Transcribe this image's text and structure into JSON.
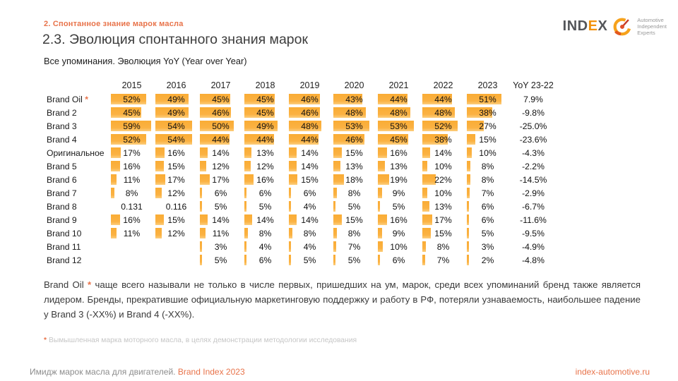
{
  "colors": {
    "accent": "#E8734A",
    "bar": "#FBAE3C",
    "logo_accent": "#F2920D"
  },
  "header": {
    "kicker": "2. Спонтанное знание марок масла",
    "title": "2.3. Эволюция спонтанного знания марок",
    "subtitle": "Все упоминания. Эволюция YoY (Year over Year)"
  },
  "logo": {
    "word_1": "IND",
    "word_accent": "E",
    "word_2": "X",
    "tagline_1": "Automotive",
    "tagline_2": "Independent",
    "tagline_3": "Experts"
  },
  "chart_data": {
    "type": "table",
    "title": "Все упоминания. Эволюция YoY (Year over Year)",
    "columns": [
      "2015",
      "2016",
      "2017",
      "2018",
      "2019",
      "2020",
      "2021",
      "2022",
      "2023",
      "YoY 23-22"
    ],
    "bar_scale": {
      "min": 3,
      "max": 59
    },
    "rows": [
      {
        "label": "Brand Oil",
        "star": true,
        "display": [
          "52%",
          "49%",
          "45%",
          "45%",
          "46%",
          "43%",
          "44%",
          "44%",
          "51%"
        ],
        "values": [
          52,
          49,
          45,
          45,
          46,
          43,
          44,
          44,
          51
        ],
        "yoy": "7.9%"
      },
      {
        "label": "Brand 2",
        "display": [
          "45%",
          "49%",
          "46%",
          "45%",
          "46%",
          "48%",
          "48%",
          "48%",
          "38%"
        ],
        "values": [
          45,
          49,
          46,
          45,
          46,
          48,
          48,
          48,
          38
        ],
        "yoy": "-9.8%"
      },
      {
        "label": "Brand 3",
        "display": [
          "59%",
          "54%",
          "50%",
          "49%",
          "48%",
          "53%",
          "53%",
          "52%",
          "27%"
        ],
        "values": [
          59,
          54,
          50,
          49,
          48,
          53,
          53,
          52,
          27
        ],
        "yoy": "-25.0%"
      },
      {
        "label": "Brand 4",
        "display": [
          "52%",
          "54%",
          "44%",
          "44%",
          "44%",
          "46%",
          "45%",
          "38%",
          "15%"
        ],
        "values": [
          52,
          54,
          44,
          44,
          44,
          46,
          45,
          38,
          15
        ],
        "yoy": "-23.6%"
      },
      {
        "label": "Оригинальное",
        "display": [
          "17%",
          "16%",
          "14%",
          "13%",
          "14%",
          "15%",
          "16%",
          "14%",
          "10%"
        ],
        "values": [
          17,
          16,
          14,
          13,
          14,
          15,
          16,
          14,
          10
        ],
        "yoy": "-4.3%"
      },
      {
        "label": "Brand 5",
        "display": [
          "16%",
          "15%",
          "12%",
          "12%",
          "14%",
          "13%",
          "13%",
          "10%",
          "8%"
        ],
        "values": [
          16,
          15,
          12,
          12,
          14,
          13,
          13,
          10,
          8
        ],
        "yoy": "-2.2%"
      },
      {
        "label": "Brand 6",
        "display": [
          "11%",
          "17%",
          "17%",
          "16%",
          "15%",
          "18%",
          "19%",
          "22%",
          "8%"
        ],
        "values": [
          11,
          17,
          17,
          16,
          15,
          18,
          19,
          22,
          8
        ],
        "yoy": "-14.5%"
      },
      {
        "label": "Brand 7",
        "display": [
          "8%",
          "12%",
          "6%",
          "6%",
          "6%",
          "8%",
          "9%",
          "10%",
          "7%"
        ],
        "values": [
          8,
          12,
          6,
          6,
          6,
          8,
          9,
          10,
          7
        ],
        "yoy": "-2.9%"
      },
      {
        "label": "Brand 8",
        "display": [
          "0.131",
          "0.116",
          "5%",
          "5%",
          "4%",
          "5%",
          "5%",
          "13%",
          "6%"
        ],
        "values": [
          null,
          null,
          5,
          5,
          4,
          5,
          5,
          13,
          6
        ],
        "yoy": "-6.7%"
      },
      {
        "label": "Brand 9",
        "display": [
          "16%",
          "15%",
          "14%",
          "14%",
          "14%",
          "15%",
          "16%",
          "17%",
          "6%"
        ],
        "values": [
          16,
          15,
          14,
          14,
          14,
          15,
          16,
          17,
          6
        ],
        "yoy": "-11.6%"
      },
      {
        "label": "Brand 10",
        "display": [
          "11%",
          "12%",
          "11%",
          "8%",
          "8%",
          "8%",
          "9%",
          "15%",
          "5%"
        ],
        "values": [
          11,
          12,
          11,
          8,
          8,
          8,
          9,
          15,
          5
        ],
        "yoy": "-9.5%"
      },
      {
        "label": "Brand 11",
        "display": [
          "",
          "",
          "3%",
          "4%",
          "4%",
          "7%",
          "10%",
          "8%",
          "3%"
        ],
        "values": [
          null,
          null,
          3,
          4,
          4,
          7,
          10,
          8,
          3
        ],
        "yoy": "-4.9%"
      },
      {
        "label": "Brand 12",
        "display": [
          "",
          "",
          "5%",
          "6%",
          "5%",
          "5%",
          "6%",
          "7%",
          "2%"
        ],
        "values": [
          null,
          null,
          5,
          6,
          5,
          5,
          6,
          7,
          2
        ],
        "yoy": "-4.8%"
      }
    ]
  },
  "commentary": {
    "lead": "Brand Oil",
    "star": "*",
    "body": "чаще всего называли не только в числе первых, пришедших на ум, марок, среди всех упоминаний бренд также является лидером. Бренды, прекратившие официальную маркетинговую поддержку и работу в РФ, потеряли узнаваемость, наибольшее падение у Brand 3 (-XX%) и Brand 4 (-XX%)."
  },
  "footnote": {
    "star": "*",
    "text": "Вымышленная марка моторного масла, в целях демонстрации методологии исследования"
  },
  "footer": {
    "study": "Имидж марок масла для двигателей.",
    "brand_index": "Brand Index 2023",
    "link": "index-automotive.ru"
  }
}
